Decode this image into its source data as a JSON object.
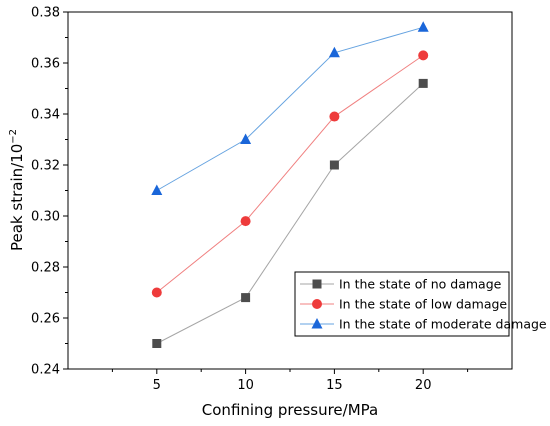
{
  "chart_data": {
    "type": "line",
    "title": "",
    "xlabel": "Confining pressure/MPa",
    "ylabel": "Peak strain/10",
    "ylabel_exponent": "−2",
    "x": [
      5,
      10,
      15,
      20
    ],
    "x_ticks": [
      "5",
      "10",
      "15",
      "20"
    ],
    "xlim": [
      0,
      25
    ],
    "ylim": [
      0.24,
      0.38
    ],
    "y_ticks": [
      "0.24",
      "0.26",
      "0.28",
      "0.30",
      "0.32",
      "0.34",
      "0.36",
      "0.38"
    ],
    "grid": false,
    "legend_position": "bottom-right",
    "series": [
      {
        "name": "In the state of no damage",
        "values": [
          0.25,
          0.268,
          0.32,
          0.352
        ],
        "color": "#4d4d4d",
        "line_color": "#a6a6a6",
        "marker": "square"
      },
      {
        "name": "In the state of low damage",
        "values": [
          0.27,
          0.298,
          0.339,
          0.363
        ],
        "color": "#ee3b3b",
        "line_color": "#f08080",
        "marker": "circle"
      },
      {
        "name": "In the state of moderate damage",
        "values": [
          0.31,
          0.33,
          0.364,
          0.374
        ],
        "color": "#1a66d9",
        "line_color": "#66a3e0",
        "marker": "triangle"
      }
    ]
  }
}
